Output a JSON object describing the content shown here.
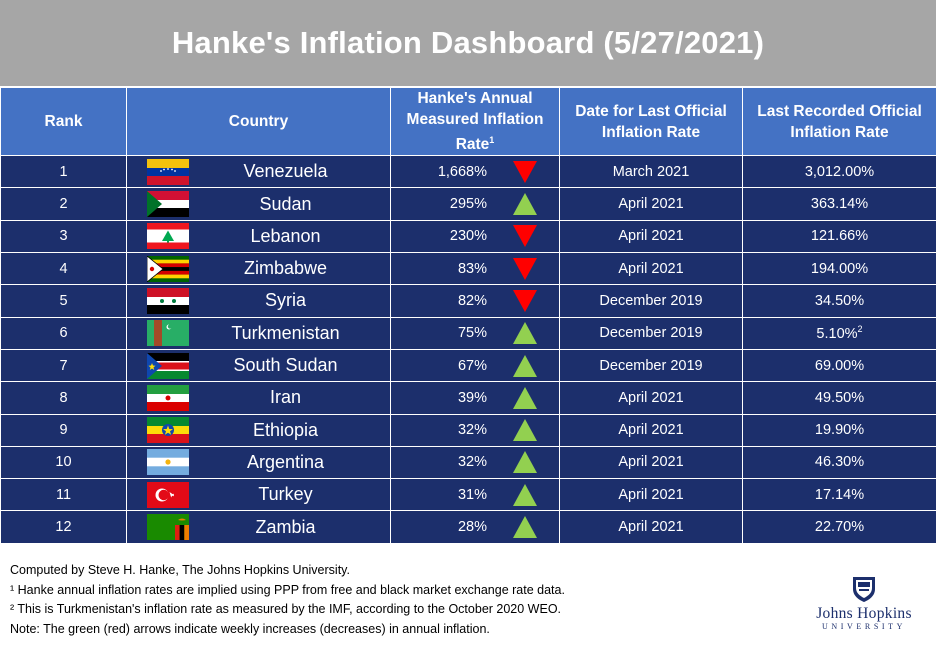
{
  "title": "Hanke's Inflation Dashboard (5/27/2021)",
  "headers": {
    "rank": "Rank",
    "country": "Country",
    "hanke_line1": "Hanke's Annual",
    "hanke_line2": "Measured Inflation",
    "hanke_line3": "Rate",
    "hanke_sup": "1",
    "date_line1": "Date for Last Official",
    "date_line2": "Inflation Rate",
    "official_line1": "Last Recorded Official",
    "official_line2": "Inflation Rate"
  },
  "rows": [
    {
      "rank": "1",
      "country": "Venezuela",
      "flag": "venezuela-flag",
      "hanke_rate": "1,668%",
      "arrow": "down",
      "date": "March 2021",
      "official_rate": "3,012.00%",
      "official_sup": ""
    },
    {
      "rank": "2",
      "country": "Sudan",
      "flag": "sudan-flag",
      "hanke_rate": "295%",
      "arrow": "up",
      "date": "April 2021",
      "official_rate": "363.14%",
      "official_sup": ""
    },
    {
      "rank": "3",
      "country": "Lebanon",
      "flag": "lebanon-flag",
      "hanke_rate": "230%",
      "arrow": "down",
      "date": "April 2021",
      "official_rate": "121.66%",
      "official_sup": ""
    },
    {
      "rank": "4",
      "country": "Zimbabwe",
      "flag": "zimbabwe-flag",
      "hanke_rate": "83%",
      "arrow": "down",
      "date": "April 2021",
      "official_rate": "194.00%",
      "official_sup": ""
    },
    {
      "rank": "5",
      "country": "Syria",
      "flag": "syria-flag",
      "hanke_rate": "82%",
      "arrow": "down",
      "date": "December 2019",
      "official_rate": "34.50%",
      "official_sup": ""
    },
    {
      "rank": "6",
      "country": "Turkmenistan",
      "flag": "turkmenistan-flag",
      "hanke_rate": "75%",
      "arrow": "up",
      "date": "December 2019",
      "official_rate": "5.10%",
      "official_sup": "2"
    },
    {
      "rank": "7",
      "country": "South Sudan",
      "flag": "south-sudan-flag",
      "hanke_rate": "67%",
      "arrow": "up",
      "date": "December 2019",
      "official_rate": "69.00%",
      "official_sup": ""
    },
    {
      "rank": "8",
      "country": "Iran",
      "flag": "iran-flag",
      "hanke_rate": "39%",
      "arrow": "up",
      "date": "April 2021",
      "official_rate": "49.50%",
      "official_sup": ""
    },
    {
      "rank": "9",
      "country": "Ethiopia",
      "flag": "ethiopia-flag",
      "hanke_rate": "32%",
      "arrow": "up",
      "date": "April 2021",
      "official_rate": "19.90%",
      "official_sup": ""
    },
    {
      "rank": "10",
      "country": "Argentina",
      "flag": "argentina-flag",
      "hanke_rate": "32%",
      "arrow": "up",
      "date": "April 2021",
      "official_rate": "46.30%",
      "official_sup": ""
    },
    {
      "rank": "11",
      "country": "Turkey",
      "flag": "turkey-flag",
      "hanke_rate": "31%",
      "arrow": "up",
      "date": "April 2021",
      "official_rate": "17.14%",
      "official_sup": ""
    },
    {
      "rank": "12",
      "country": "Zambia",
      "flag": "zambia-flag",
      "hanke_rate": "28%",
      "arrow": "up",
      "date": "April 2021",
      "official_rate": "22.70%",
      "official_sup": ""
    }
  ],
  "footer": {
    "line1": "Computed by Steve H. Hanke, The Johns Hopkins University.",
    "line2": "¹ Hanke annual inflation rates are implied using PPP from free and black market exchange rate data.",
    "line3": "² This is Turkmenistan's inflation rate as measured by the IMF, according to the October 2020 WEO.",
    "line4": "Note: The green (red) arrows indicate weekly increases (decreases) in annual inflation."
  },
  "logo": {
    "name": "Johns Hopkins",
    "sub": "UNIVERSITY",
    "icon": "university-shield-icon"
  },
  "colors": {
    "title_bg": "#a6a6a6",
    "header_bg": "#4472c4",
    "row_bg": "#1c2f6c",
    "up_arrow": "#92d050",
    "down_arrow": "#ff0000"
  }
}
